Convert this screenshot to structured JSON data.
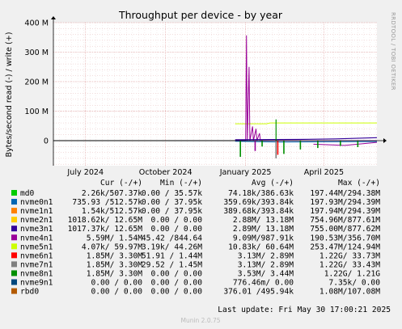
{
  "chart_data": {
    "type": "line",
    "title": "Throughput per device - by year",
    "ylabel": "Bytes/second read (-) / write (+)",
    "side_label": "RRDTOOL / TOBI OETIKER",
    "y_ticks": [
      "400 M",
      "300 M",
      "200 M",
      "100 M",
      "0"
    ],
    "y_tick_values": [
      400,
      300,
      200,
      100,
      0
    ],
    "ylim": [
      -85,
      400
    ],
    "y_unit": "M",
    "x_ticks": [
      "July 2024",
      "October 2024",
      "January 2025",
      "April 2025"
    ],
    "x_tick_dates": [
      "2024-07-01",
      "2024-10-01",
      "2025-01-01",
      "2025-04-01"
    ],
    "x_range": [
      "2024-05-25",
      "2025-06-01"
    ],
    "grid": true,
    "columns": {
      "cur": "Cur (-/+)",
      "min": "Min (-/+)",
      "avg": "Avg (-/+)",
      "max": "Max (-/+)"
    },
    "series": [
      {
        "name": "md0",
        "color": "#00cc00",
        "cur": "2.26k/507.37k",
        "min": "0.00 / 35.57k",
        "avg": "74.18k/386.63k",
        "max": "197.44M/294.38M"
      },
      {
        "name": "nvme0n1",
        "color": "#0066b3",
        "cur": "735.93 /512.57k",
        "min": "0.00 / 37.95k",
        "avg": "359.69k/393.84k",
        "max": "197.93M/294.39M"
      },
      {
        "name": "nvme1n1",
        "color": "#ff8000",
        "cur": "1.54k/512.57k",
        "min": "0.00 / 37.95k",
        "avg": "389.68k/393.84k",
        "max": "197.94M/294.39M"
      },
      {
        "name": "nvme2n1",
        "color": "#ffcc00",
        "cur": "1018.62k/ 12.65M",
        "min": "0.00 /  0.00",
        "avg": "2.88M/ 13.18M",
        "max": "754.96M/877.61M"
      },
      {
        "name": "nvme3n1",
        "color": "#330099",
        "cur": "1017.37k/ 12.65M",
        "min": "0.00 /  0.00",
        "avg": "2.89M/ 13.18M",
        "max": "755.00M/877.62M"
      },
      {
        "name": "nvme4n1",
        "color": "#990099",
        "cur": "5.59M/  1.54M",
        "min": "45.42 /844.64",
        "avg": "9.09M/987.91k",
        "max": "190.53M/356.70M"
      },
      {
        "name": "nvme5n1",
        "color": "#ccff00",
        "cur": "4.07k/ 59.97M",
        "min": "3.19k/ 44.26M",
        "avg": "10.83k/ 60.64M",
        "max": "253.47M/124.94M"
      },
      {
        "name": "nvme6n1",
        "color": "#ff0000",
        "cur": "1.85M/  3.30M",
        "min": "51.91 /  1.44M",
        "avg": "3.13M/  2.89M",
        "max": "1.22G/ 33.73M"
      },
      {
        "name": "nvme7n1",
        "color": "#808080",
        "cur": "1.85M/  3.30M",
        "min": "29.52 /  1.45M",
        "avg": "3.13M/  2.89M",
        "max": "1.22G/ 33.43M"
      },
      {
        "name": "nvme8n1",
        "color": "#008f00",
        "cur": "1.85M/  3.30M",
        "min": "0.00 /  0.00",
        "avg": "3.53M/  3.44M",
        "max": "1.22G/  1.21G"
      },
      {
        "name": "nvme9n1",
        "color": "#00487d",
        "cur": "0.00 /  0.00",
        "min": "0.00 /  0.00",
        "avg": "776.46m/  0.00",
        "max": "7.35k/  0.00"
      },
      {
        "name": "rbd0",
        "color": "#b35a00",
        "cur": "0.00 /  0.00",
        "min": "0.00 /  0.00",
        "avg": "376.01 /495.94k",
        "max": "1.08M/107.08M"
      }
    ],
    "last_update": "Last update: Fri May 30 17:00:21 2025",
    "footer": "Munin 2.0.75"
  }
}
